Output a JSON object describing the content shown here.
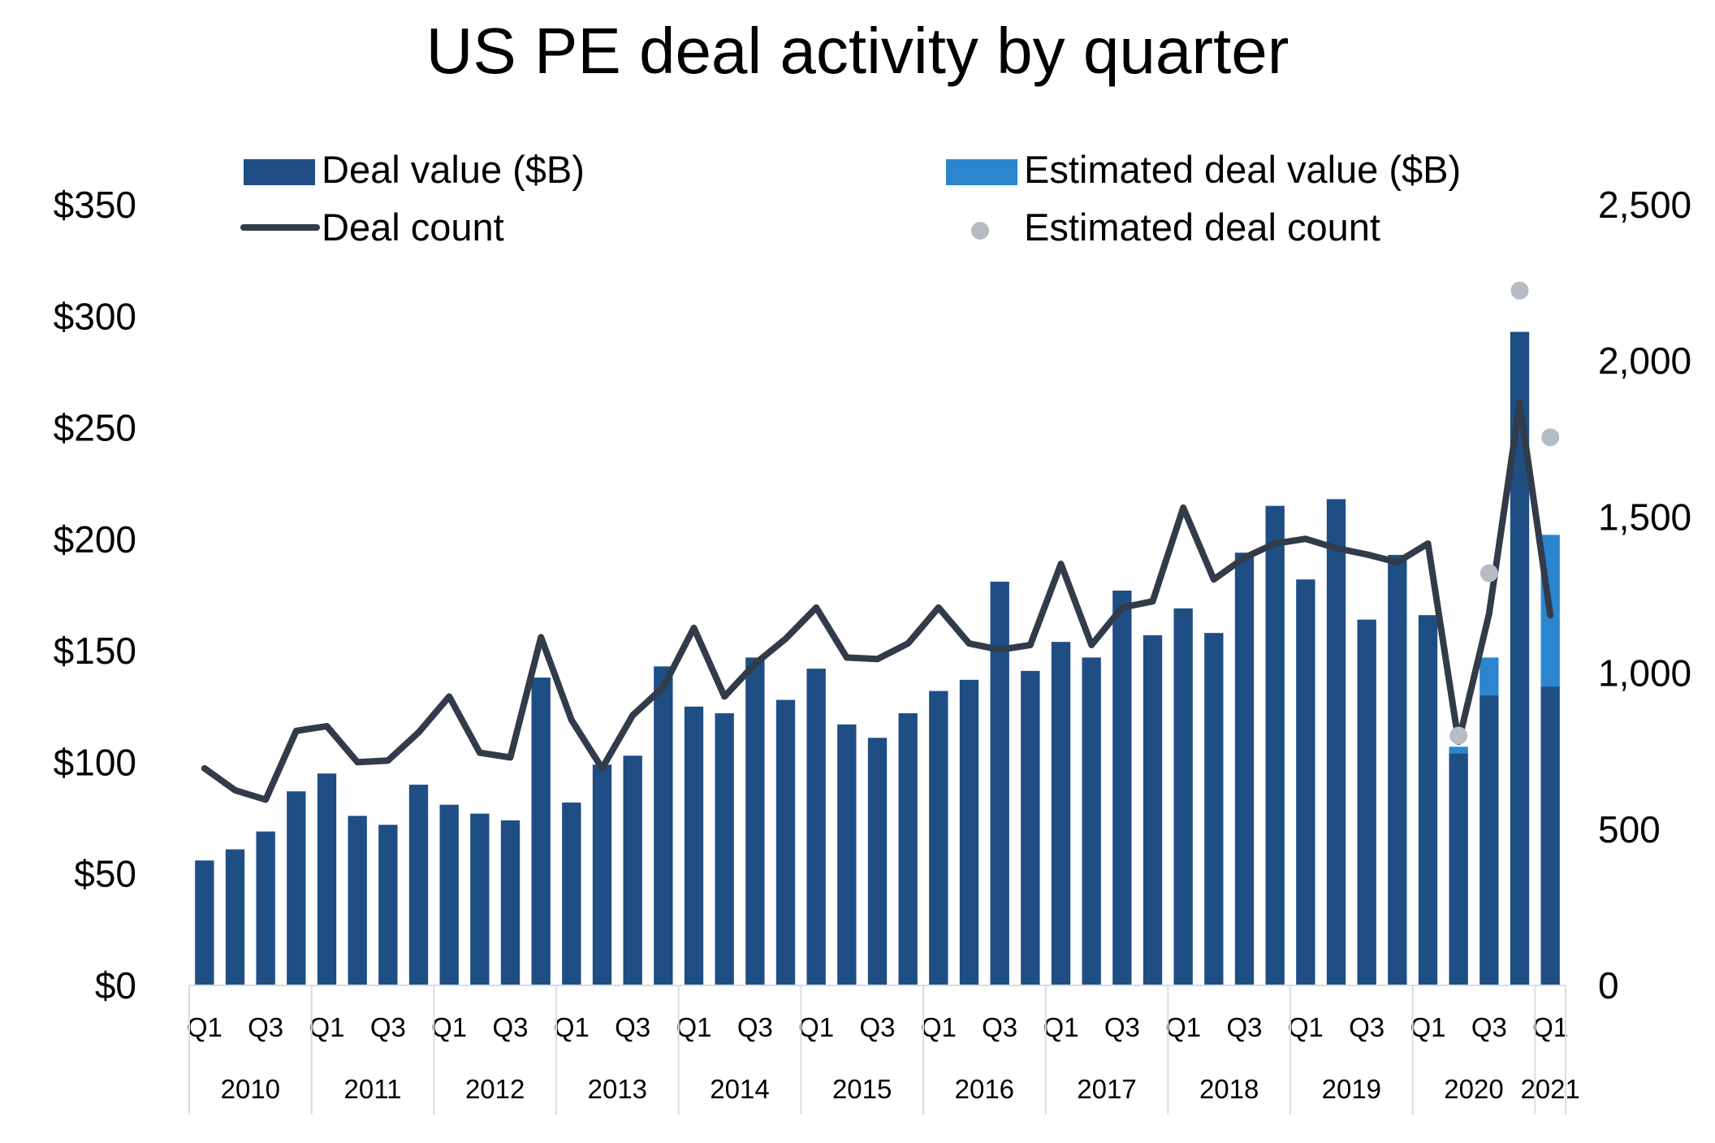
{
  "chart_data": {
    "type": "bar",
    "title": "US PE deal activity by quarter",
    "colors": {
      "deal_value": "#1f4e84",
      "estimated_deal_value": "#2b86cf",
      "deal_count": "#323b49",
      "estimated_deal_count": "#b6bcc4",
      "axis": "#d9dde3"
    },
    "legend": {
      "position": "top",
      "items": [
        {
          "label": "Deal value ($B)",
          "marker": "bar",
          "color": "#1f4e84"
        },
        {
          "label": "Estimated deal value ($B)",
          "marker": "bar",
          "color": "#2b86cf"
        },
        {
          "label": "Deal count",
          "marker": "line",
          "color": "#323b49"
        },
        {
          "label": "Estimated deal count",
          "marker": "dot",
          "color": "#b6bcc4"
        }
      ]
    },
    "y_left": {
      "ticks": [
        "$0",
        "$50",
        "$100",
        "$150",
        "$200",
        "$250",
        "$300",
        "$350"
      ],
      "range": [
        0,
        350
      ]
    },
    "y_right": {
      "ticks": [
        "0",
        "500",
        "1,000",
        "1,500",
        "2,000",
        "2,500"
      ],
      "range": [
        0,
        2500
      ]
    },
    "quarter_labels": [
      "Q1",
      "",
      "Q3",
      "",
      "Q1",
      "",
      "Q3",
      "",
      "Q1",
      "",
      "Q3",
      "",
      "Q1",
      "",
      "Q3",
      "",
      "Q1",
      "",
      "Q3",
      "",
      "Q1",
      "",
      "Q3",
      "",
      "Q1",
      "",
      "Q3",
      "",
      "Q1",
      "",
      "Q3",
      "",
      "Q1",
      "",
      "Q3",
      "",
      "Q1",
      "",
      "Q3",
      "",
      "Q1",
      "",
      "Q3",
      "",
      "Q1"
    ],
    "years": [
      {
        "label": "2010",
        "quarters": 4
      },
      {
        "label": "2011",
        "quarters": 4
      },
      {
        "label": "2012",
        "quarters": 4
      },
      {
        "label": "2013",
        "quarters": 4
      },
      {
        "label": "2014",
        "quarters": 4
      },
      {
        "label": "2015",
        "quarters": 4
      },
      {
        "label": "2016",
        "quarters": 4
      },
      {
        "label": "2017",
        "quarters": 4
      },
      {
        "label": "2018",
        "quarters": 4
      },
      {
        "label": "2019",
        "quarters": 4
      },
      {
        "label": "2020",
        "quarters": 4
      },
      {
        "label": "2021",
        "quarters": 1
      }
    ],
    "series": [
      {
        "name": "Deal value ($B)",
        "values": [
          56,
          61,
          69,
          87,
          95,
          76,
          72,
          90,
          81,
          77,
          74,
          138,
          82,
          99,
          103,
          143,
          125,
          122,
          147,
          128,
          142,
          117,
          111,
          122,
          132,
          137,
          181,
          141,
          154,
          147,
          177,
          157,
          169,
          158,
          194,
          215,
          182,
          218,
          164,
          193,
          166,
          104,
          130,
          293,
          134
        ]
      },
      {
        "name": "Estimated deal value ($B)",
        "values": [
          0,
          0,
          0,
          0,
          0,
          0,
          0,
          0,
          0,
          0,
          0,
          0,
          0,
          0,
          0,
          0,
          0,
          0,
          0,
          0,
          0,
          0,
          0,
          0,
          0,
          0,
          0,
          0,
          0,
          0,
          0,
          0,
          0,
          0,
          0,
          0,
          0,
          0,
          0,
          0,
          0,
          3,
          17,
          0,
          68
        ]
      },
      {
        "name": "Deal count",
        "values": [
          695,
          625,
          595,
          815,
          830,
          715,
          720,
          810,
          925,
          745,
          730,
          1115,
          850,
          695,
          865,
          955,
          1145,
          925,
          1030,
          1110,
          1210,
          1050,
          1045,
          1095,
          1210,
          1095,
          1075,
          1090,
          1350,
          1090,
          1210,
          1230,
          1530,
          1300,
          1370,
          1415,
          1430,
          1400,
          1380,
          1355,
          1415,
          780,
          1190,
          1865,
          1185
        ]
      },
      {
        "name": "Estimated deal count",
        "points": [
          {
            "x": 42,
            "y": 800
          },
          {
            "x": 43,
            "y": 1320
          },
          {
            "x": 44,
            "y": 2225
          },
          {
            "x": 45,
            "y": 1755
          }
        ]
      }
    ]
  }
}
